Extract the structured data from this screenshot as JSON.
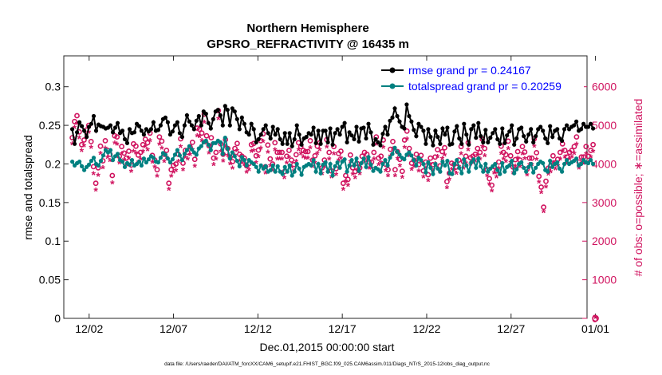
{
  "chart_data": {
    "type": "line",
    "title": "Northern Hemisphere",
    "subtitle": "GPSRO_REFRACTIVITY @ 16435 m",
    "xlabel": "Dec.01,2015 00:00:00 start",
    "ylabel": "rmse and totalspread",
    "y2label": "# of obs: o=possible; ∗=assimilated",
    "footnote": "data file: /Users/raeder/DAI/ATM_forcXX/CAM6_setup/f.e21.FHIST_BGC.f09_025.CAM6assim.011/Diags_NTrS_2015-12/obs_diag_output.nc",
    "xlim": [
      0.5,
      31.5
    ],
    "ylim": [
      0,
      0.34
    ],
    "y2lim": [
      0,
      6800
    ],
    "x_ticks": [
      2,
      7,
      12,
      17,
      22,
      27,
      32
    ],
    "x_tick_labels": [
      "12/02",
      "12/07",
      "12/12",
      "12/17",
      "12/22",
      "12/27",
      "01/01"
    ],
    "y_ticks": [
      0,
      0.05,
      0.1,
      0.15,
      0.2,
      0.25,
      0.3
    ],
    "y_tick_labels": [
      "0",
      "0.05",
      "0.1",
      "0.15",
      "0.2",
      "0.25",
      "0.3"
    ],
    "y2_ticks": [
      0,
      1000,
      2000,
      3000,
      4000,
      5000,
      6000
    ],
    "y2_tick_labels": [
      "0",
      "1000",
      "2000",
      "3000",
      "4000",
      "5000",
      "6000"
    ],
    "grid": false,
    "legend_position": "top-right",
    "colors": {
      "rmse": "#000000",
      "spread": "#008080",
      "obs": "#d0135f",
      "legend_text": "#0000ff"
    },
    "series": [
      {
        "name": "rmse grand pr = 0.24167",
        "axis": "left",
        "marker": "filled-circle",
        "values": [
          0.245,
          0.226,
          0.241,
          0.254,
          0.249,
          0.243,
          0.235,
          0.248,
          0.252,
          0.262,
          0.243,
          0.251,
          0.249,
          0.248,
          0.246,
          0.247,
          0.25,
          0.241,
          0.247,
          0.253,
          0.24,
          0.243,
          0.232,
          0.227,
          0.245,
          0.24,
          0.241,
          0.252,
          0.249,
          0.243,
          0.238,
          0.245,
          0.242,
          0.245,
          0.254,
          0.243,
          0.244,
          0.25,
          0.258,
          0.26,
          0.254,
          0.238,
          0.242,
          0.25,
          0.254,
          0.24,
          0.235,
          0.25,
          0.263,
          0.255,
          0.25,
          0.245,
          0.256,
          0.262,
          0.25,
          0.268,
          0.265,
          0.253,
          0.246,
          0.258,
          0.268,
          0.27,
          0.263,
          0.25,
          0.275,
          0.27,
          0.25,
          0.272,
          0.268,
          0.258,
          0.245,
          0.26,
          0.252,
          0.241,
          0.238,
          0.252,
          0.245,
          0.228,
          0.232,
          0.238,
          0.245,
          0.25,
          0.24,
          0.233,
          0.248,
          0.238,
          0.245,
          0.232,
          0.226,
          0.24,
          0.226,
          0.24,
          0.223,
          0.232,
          0.25,
          0.238,
          0.225,
          0.233,
          0.235,
          0.24,
          0.238,
          0.247,
          0.227,
          0.243,
          0.226,
          0.243,
          0.243,
          0.228,
          0.246,
          0.225,
          0.24,
          0.245,
          0.238,
          0.248,
          0.253,
          0.228,
          0.241,
          0.237,
          0.232,
          0.248,
          0.229,
          0.246,
          0.247,
          0.233,
          0.252,
          0.241,
          0.225,
          0.232,
          0.228,
          0.224,
          0.239,
          0.248,
          0.238,
          0.256,
          0.26,
          0.272,
          0.262,
          0.255,
          0.248,
          0.246,
          0.277,
          0.262,
          0.255,
          0.244,
          0.236,
          0.252,
          0.248,
          0.243,
          0.226,
          0.245,
          0.235,
          0.224,
          0.243,
          0.235,
          0.226,
          0.246,
          0.238,
          0.247,
          0.225,
          0.226,
          0.242,
          0.249,
          0.233,
          0.226,
          0.252,
          0.238,
          0.225,
          0.245,
          0.25,
          0.234,
          0.253,
          0.236,
          0.228,
          0.244,
          0.228,
          0.234,
          0.24,
          0.245,
          0.232,
          0.226,
          0.246,
          0.227,
          0.237,
          0.242,
          0.25,
          0.225,
          0.233,
          0.245,
          0.247,
          0.236,
          0.229,
          0.238,
          0.245,
          0.228,
          0.236,
          0.245,
          0.248,
          0.243,
          0.233,
          0.227,
          0.249,
          0.235,
          0.243,
          0.245,
          0.233,
          0.23,
          0.245,
          0.25,
          0.245,
          0.248,
          0.25,
          0.255,
          0.243,
          0.245,
          0.252,
          0.248,
          0.248,
          0.252,
          0.246
        ]
      },
      {
        "name": "totalspread grand pr = 0.20259",
        "axis": "left",
        "marker": "filled-circle",
        "values": [
          0.203,
          0.198,
          0.201,
          0.203,
          0.197,
          0.192,
          0.196,
          0.199,
          0.204,
          0.208,
          0.2,
          0.198,
          0.204,
          0.211,
          0.218,
          0.215,
          0.218,
          0.205,
          0.21,
          0.213,
          0.205,
          0.203,
          0.196,
          0.201,
          0.199,
          0.205,
          0.198,
          0.2,
          0.203,
          0.198,
          0.207,
          0.202,
          0.206,
          0.21,
          0.208,
          0.203,
          0.202,
          0.208,
          0.214,
          0.212,
          0.207,
          0.202,
          0.206,
          0.212,
          0.218,
          0.211,
          0.205,
          0.213,
          0.218,
          0.223,
          0.219,
          0.215,
          0.212,
          0.22,
          0.223,
          0.228,
          0.23,
          0.225,
          0.218,
          0.227,
          0.227,
          0.23,
          0.228,
          0.213,
          0.234,
          0.22,
          0.207,
          0.215,
          0.21,
          0.204,
          0.197,
          0.209,
          0.205,
          0.198,
          0.205,
          0.202,
          0.2,
          0.196,
          0.19,
          0.198,
          0.194,
          0.197,
          0.19,
          0.192,
          0.198,
          0.19,
          0.197,
          0.19,
          0.187,
          0.196,
          0.19,
          0.198,
          0.185,
          0.19,
          0.2,
          0.194,
          0.186,
          0.196,
          0.198,
          0.2,
          0.198,
          0.205,
          0.19,
          0.2,
          0.188,
          0.199,
          0.202,
          0.19,
          0.2,
          0.185,
          0.197,
          0.202,
          0.195,
          0.203,
          0.206,
          0.19,
          0.198,
          0.205,
          0.198,
          0.207,
          0.191,
          0.201,
          0.207,
          0.196,
          0.209,
          0.199,
          0.191,
          0.195,
          0.193,
          0.19,
          0.2,
          0.205,
          0.198,
          0.208,
          0.213,
          0.221,
          0.216,
          0.212,
          0.208,
          0.206,
          0.212,
          0.215,
          0.211,
          0.205,
          0.198,
          0.208,
          0.205,
          0.2,
          0.189,
          0.202,
          0.195,
          0.187,
          0.2,
          0.194,
          0.19,
          0.203,
          0.198,
          0.204,
          0.188,
          0.187,
          0.2,
          0.205,
          0.195,
          0.188,
          0.206,
          0.198,
          0.19,
          0.202,
          0.206,
          0.195,
          0.207,
          0.197,
          0.19,
          0.2,
          0.19,
          0.194,
          0.197,
          0.2,
          0.192,
          0.187,
          0.201,
          0.19,
          0.196,
          0.198,
          0.204,
          0.188,
          0.193,
          0.2,
          0.202,
          0.195,
          0.19,
          0.196,
          0.2,
          0.189,
          0.195,
          0.2,
          0.203,
          0.201,
          0.192,
          0.19,
          0.204,
          0.196,
          0.2,
          0.202,
          0.194,
          0.19,
          0.2,
          0.205,
          0.2,
          0.202,
          0.204,
          0.207,
          0.198,
          0.2,
          0.205,
          0.202,
          0.201,
          0.205,
          0.2
        ]
      },
      {
        "name": "possible",
        "axis": "right",
        "marker": "open-circle",
        "values": [
          4680,
          5100,
          5250,
          4830,
          4500,
          4620,
          4880,
          5000,
          4580,
          3930,
          3500,
          3900,
          4460,
          4080,
          4600,
          4350,
          4250,
          3700,
          4730,
          4700,
          4200,
          4450,
          4280,
          4150,
          4330,
          3970,
          4520,
          4460,
          4230,
          4300,
          4500,
          4640,
          4550,
          4800,
          4220,
          4100,
          3850,
          4700,
          4590,
          4250,
          4350,
          3500,
          3850,
          3960,
          4000,
          4250,
          4650,
          4020,
          4350,
          4300,
          4440,
          4560,
          4120,
          4930,
          4900,
          4800,
          5290,
          4730,
          4470,
          4680,
          4150,
          4300,
          5380,
          4520,
          4250,
          4630,
          4400,
          4180,
          4060,
          4400,
          4530,
          4250,
          4200,
          4150,
          3950,
          4010,
          4500,
          4530,
          4210,
          4360,
          4600,
          4780,
          3930,
          4490,
          4130,
          4000,
          4550,
          4300,
          4300,
          4300,
          3800,
          4200,
          4350,
          4100,
          3980,
          4240,
          4550,
          4450,
          4350,
          4320,
          4320,
          4600,
          4100,
          4210,
          4460,
          4550,
          3900,
          4100,
          4630,
          4300,
          3820,
          4450,
          3880,
          4270,
          4330,
          3500,
          3700,
          3600,
          4230,
          3900,
          3800,
          4010,
          3900,
          4200,
          4300,
          4250,
          4050,
          4050,
          4300,
          4700,
          4150,
          4200,
          4620,
          3990,
          3850,
          4380,
          4580,
          3850,
          4320,
          4120,
          3810,
          4620,
          4850,
          4400,
          4020,
          4100,
          4250,
          3980,
          4220,
          3820,
          4050,
          3720,
          4150,
          3980,
          4180,
          4370,
          3950,
          4320,
          4420,
          3540,
          3760,
          4020,
          3990,
          3920,
          4100,
          4450,
          4060,
          4200,
          4550,
          4160,
          4200,
          4250,
          4400,
          4300,
          4640,
          4400,
          3850,
          3620,
          3450,
          3930,
          3820,
          4050,
          4460,
          4300,
          4240,
          4590,
          4210,
          3920,
          4110,
          4320,
          4100,
          4450,
          4310,
          3870,
          4150,
          4150,
          4650,
          4290,
          3680,
          3400,
          2880,
          3550,
          3890,
          3950,
          4210,
          4030,
          4120,
          4300,
          4520,
          4350,
          4180,
          4300,
          4350,
          4450,
          4700,
          4050,
          4180,
          4180,
          4450,
          4200,
          4350,
          4500
        ]
      },
      {
        "name": "assimilated",
        "axis": "right",
        "marker": "asterisk",
        "values": [
          4500,
          4920,
          5020,
          4650,
          4320,
          4440,
          4700,
          4800,
          4400,
          3720,
          3300,
          3680,
          4250,
          3880,
          4380,
          4140,
          4060,
          3480,
          4520,
          4480,
          4000,
          4240,
          4080,
          3950,
          4120,
          3780,
          4300,
          4260,
          4020,
          4100,
          4300,
          4420,
          4340,
          4580,
          4020,
          3900,
          3660,
          4480,
          4380,
          4040,
          4140,
          3320,
          3660,
          3760,
          3800,
          4040,
          4420,
          3820,
          4140,
          4100,
          4220,
          4340,
          3920,
          4700,
          4680,
          4580,
          5050,
          4520,
          4260,
          4460,
          3960,
          4100,
          5150,
          4300,
          4050,
          4420,
          4200,
          3980,
          3860,
          4200,
          4320,
          4050,
          4000,
          3960,
          3760,
          3820,
          4300,
          4320,
          4010,
          4160,
          4380,
          4560,
          3740,
          4280,
          3930,
          3800,
          4340,
          4100,
          4100,
          4100,
          3620,
          4000,
          4140,
          3900,
          3790,
          4040,
          4340,
          4240,
          4150,
          4120,
          4120,
          4390,
          3910,
          4010,
          4250,
          4340,
          3720,
          3910,
          4410,
          4100,
          3640,
          4240,
          3700,
          4070,
          4120,
          3320,
          3520,
          3420,
          4030,
          3710,
          3620,
          3820,
          3720,
          4000,
          4100,
          4050,
          3860,
          3860,
          4100,
          4480,
          3960,
          4010,
          4400,
          3800,
          3670,
          4170,
          4360,
          3670,
          4110,
          3930,
          3630,
          4400,
          4620,
          4190,
          3830,
          3910,
          4050,
          3790,
          4020,
          3640,
          3860,
          3540,
          3950,
          3790,
          3980,
          4160,
          3760,
          4110,
          4210,
          3360,
          3580,
          3830,
          3800,
          3730,
          3910,
          4240,
          3870,
          4000,
          4340,
          3970,
          4010,
          4050,
          4200,
          4100,
          4420,
          4190,
          3670,
          3450,
          3280,
          3740,
          3640,
          3860,
          4250,
          4100,
          4040,
          4370,
          4010,
          3740,
          3920,
          4120,
          3910,
          4240,
          4110,
          3690,
          3960,
          3960,
          4430,
          4090,
          3500,
          3230,
          2740,
          3380,
          3710,
          3770,
          4010,
          3840,
          3930,
          4100,
          4310,
          4150,
          3990,
          4100,
          4150,
          4250,
          4480,
          3860,
          3990,
          3990,
          4240,
          4010,
          4150,
          4300
        ]
      }
    ],
    "edge_points": {
      "x": 32,
      "y2": 0
    }
  }
}
